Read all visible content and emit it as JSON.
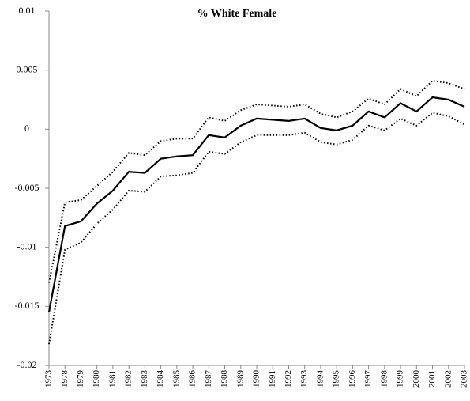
{
  "chart_data": {
    "type": "line",
    "title": "% White Female",
    "categories": [
      "1973",
      "1978",
      "1979",
      "1980",
      "1981",
      "1982",
      "1983",
      "1984",
      "1985",
      "1986",
      "1987",
      "1988",
      "1989",
      "1990",
      "1991",
      "1992",
      "1993",
      "1994",
      "1995",
      "1996",
      "1997",
      "1998",
      "1999",
      "2000",
      "2001",
      "2002",
      "2003"
    ],
    "series": [
      {
        "color": "#000000",
        "style": "solid",
        "values": [
          -0.0155,
          -0.0082,
          -0.0078,
          -0.0063,
          -0.0052,
          -0.0036,
          -0.0037,
          -0.0025,
          -0.0023,
          -0.0022,
          -0.0005,
          -0.0007,
          0.0003,
          0.0009,
          0.0008,
          0.0007,
          0.0009,
          0.0001,
          -0.0001,
          0.0003,
          0.0015,
          0.001,
          0.0022,
          0.0015,
          0.0027,
          0.0025,
          0.0019
        ]
      },
      {
        "color": "#000000",
        "style": "dotted",
        "values": [
          -0.013,
          -0.0062,
          -0.006,
          -0.0048,
          -0.0036,
          -0.002,
          -0.0022,
          -0.001,
          -0.0008,
          -0.0008,
          0.001,
          0.0007,
          0.0016,
          0.0021,
          0.002,
          0.0019,
          0.0021,
          0.0013,
          0.001,
          0.0015,
          0.0026,
          0.0021,
          0.0034,
          0.0028,
          0.0041,
          0.0039,
          0.0034
        ]
      },
      {
        "color": "#000000",
        "style": "dotted",
        "values": [
          -0.0182,
          -0.0102,
          -0.0096,
          -0.008,
          -0.0068,
          -0.0052,
          -0.0053,
          -0.004,
          -0.0039,
          -0.0037,
          -0.0019,
          -0.0021,
          -0.0011,
          -0.0005,
          -0.0005,
          -0.0005,
          -0.0003,
          -0.0011,
          -0.0013,
          -0.0009,
          0.0003,
          -0.0001,
          0.0009,
          0.0003,
          0.0014,
          0.0011,
          0.0004
        ]
      }
    ],
    "ylim": [
      -0.02,
      0.01
    ],
    "yticks": [
      -0.02,
      -0.015,
      -0.01,
      -0.005,
      0,
      0.005,
      0.01
    ],
    "grid": false
  }
}
